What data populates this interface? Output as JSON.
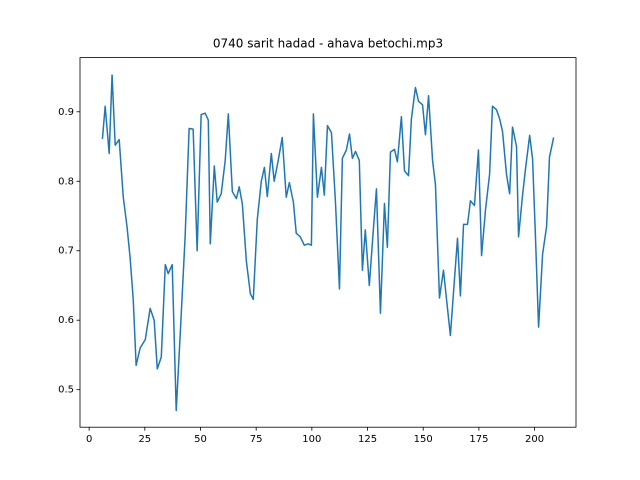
{
  "chart_data": {
    "type": "line",
    "title": "0740 sarit hadad - ahava betochi.mp3",
    "x": [
      6,
      7.2,
      9,
      10.3,
      11.7,
      13.5,
      15.3,
      17,
      18.4,
      19.8,
      21.1,
      22.9,
      25.2,
      27.4,
      29.2,
      30.6,
      32.4,
      34.2,
      35.5,
      37.3,
      39.1,
      40.9,
      43.1,
      44.9,
      46.7,
      48.5,
      50.3,
      52.1,
      53.5,
      54.4,
      56.2,
      57.5,
      59.3,
      61.1,
      62.5,
      64.3,
      66.1,
      67.4,
      68.8,
      70.6,
      72.4,
      73.7,
      75.5,
      77.3,
      78.7,
      80,
      81.8,
      83.1,
      84.9,
      86.7,
      88.5,
      89.9,
      91.7,
      93,
      94.8,
      96.6,
      98.4,
      99.8,
      100.7,
      102.5,
      104.3,
      105.6,
      107,
      108.8,
      110.6,
      112.4,
      113.7,
      115.5,
      116.9,
      118.2,
      119.6,
      121.3,
      122.7,
      124,
      125.8,
      127.6,
      129,
      130.8,
      132.6,
      133.9,
      135.3,
      137.1,
      138.4,
      140.2,
      141.6,
      143.4,
      144.7,
      146.5,
      147.9,
      149.7,
      151,
      152.4,
      154.2,
      155.5,
      157.3,
      159.1,
      160.4,
      162.2,
      163.6,
      165.4,
      166.7,
      168.1,
      169.9,
      171.2,
      173,
      174.8,
      176.2,
      178,
      179.8,
      181.1,
      182.9,
      184.3,
      185.6,
      187.4,
      188.8,
      190.1,
      191.9,
      192.8,
      194.6,
      196,
      197.8,
      199.1,
      200.4,
      201.8,
      203.6,
      205.4,
      206.7,
      208.5
    ],
    "y": [
      0.862,
      0.908,
      0.84,
      0.953,
      0.852,
      0.86,
      0.778,
      0.735,
      0.69,
      0.63,
      0.535,
      0.56,
      0.572,
      0.617,
      0.6,
      0.53,
      0.547,
      0.68,
      0.667,
      0.68,
      0.47,
      0.58,
      0.72,
      0.876,
      0.875,
      0.7,
      0.896,
      0.898,
      0.888,
      0.71,
      0.822,
      0.77,
      0.782,
      0.83,
      0.897,
      0.785,
      0.775,
      0.792,
      0.767,
      0.685,
      0.638,
      0.63,
      0.745,
      0.8,
      0.82,
      0.778,
      0.84,
      0.8,
      0.83,
      0.863,
      0.777,
      0.798,
      0.77,
      0.725,
      0.72,
      0.708,
      0.71,
      0.708,
      0.897,
      0.777,
      0.82,
      0.78,
      0.88,
      0.87,
      0.77,
      0.645,
      0.833,
      0.845,
      0.868,
      0.833,
      0.843,
      0.83,
      0.672,
      0.73,
      0.65,
      0.73,
      0.789,
      0.61,
      0.768,
      0.705,
      0.842,
      0.846,
      0.828,
      0.893,
      0.815,
      0.808,
      0.89,
      0.935,
      0.915,
      0.91,
      0.867,
      0.923,
      0.83,
      0.795,
      0.632,
      0.672,
      0.632,
      0.578,
      0.64,
      0.718,
      0.635,
      0.738,
      0.738,
      0.772,
      0.765,
      0.845,
      0.693,
      0.76,
      0.81,
      0.908,
      0.903,
      0.89,
      0.872,
      0.81,
      0.782,
      0.878,
      0.85,
      0.72,
      0.78,
      0.82,
      0.866,
      0.832,
      0.72,
      0.59,
      0.695,
      0.735,
      0.835,
      0.862
    ],
    "color": "#1f77b4",
    "xlim": [
      -4.1,
      218.6
    ],
    "xticks": [
      0,
      25,
      50,
      75,
      100,
      125,
      150,
      175,
      200
    ],
    "ylim": [
      0.446,
      0.978
    ],
    "yticks": [
      0.5,
      0.6,
      0.7,
      0.8,
      0.9
    ]
  }
}
